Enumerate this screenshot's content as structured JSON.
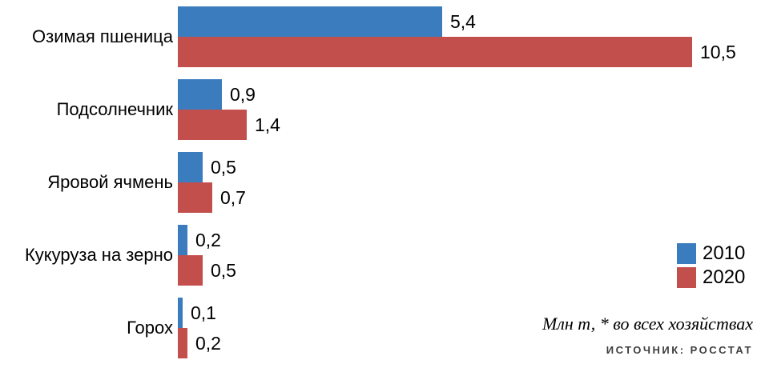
{
  "chart_data": {
    "type": "bar",
    "orientation": "horizontal",
    "categories": [
      "Озимая пшеница",
      "Подсолнечник",
      "Яровой ячмень",
      "Кукуруза на зерно",
      "Горох"
    ],
    "series": [
      {
        "name": "2010",
        "color": "#3a7cbe",
        "values": [
          5.4,
          0.9,
          0.5,
          0.2,
          0.1
        ]
      },
      {
        "name": "2020",
        "color": "#c34f4c",
        "values": [
          10.5,
          1.4,
          0.7,
          0.5,
          0.2
        ]
      }
    ],
    "value_labels": [
      [
        "5,4",
        "0,9",
        "0,5",
        "0,2",
        "0,1"
      ],
      [
        "10,5",
        "1,4",
        "0,7",
        "0,5",
        "0,2"
      ]
    ],
    "xlim": [
      0,
      10.5
    ],
    "grid": false,
    "legend_position": "right",
    "note": "Млн т, * во всех хозяйствах",
    "source": "ИСТОЧНИК: РОССТАТ"
  }
}
